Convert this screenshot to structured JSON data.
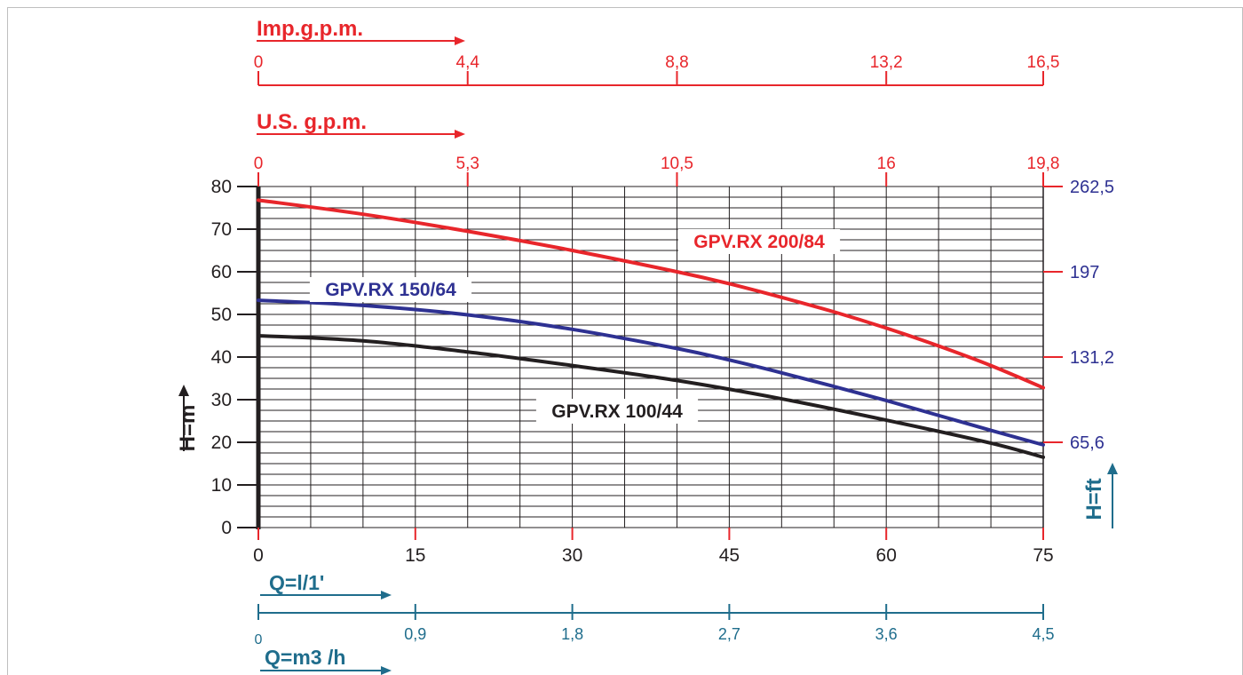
{
  "chart_data": {
    "type": "line",
    "xlim": [
      0,
      75
    ],
    "ylim": [
      0,
      80
    ],
    "x_ticks": [
      "0",
      "15",
      "30",
      "45",
      "60",
      "75"
    ],
    "y_ticks": [
      "0",
      "10",
      "20",
      "30",
      "40",
      "50",
      "60",
      "70",
      "80"
    ],
    "y_label": "H=m",
    "right_axis": {
      "label": "H=ft",
      "ticks": [
        {
          "value": 20,
          "label": "65,6"
        },
        {
          "value": 40,
          "label": "131,2"
        },
        {
          "value": 60,
          "label": "197"
        },
        {
          "value": 80,
          "label": "262,5"
        }
      ]
    },
    "top_axes": [
      {
        "label": "Imp.g.p.m.",
        "ticks": [
          {
            "value": 0,
            "label": "0"
          },
          {
            "value": 20,
            "label": "4,4"
          },
          {
            "value": 40,
            "label": "8,8"
          },
          {
            "value": 60,
            "label": "13,2"
          },
          {
            "value": 75,
            "label": "16,5"
          }
        ]
      },
      {
        "label": "U.S. g.p.m.",
        "ticks": [
          {
            "value": 0,
            "label": "0"
          },
          {
            "value": 20,
            "label": "5,3"
          },
          {
            "value": 40,
            "label": "10,5"
          },
          {
            "value": 60,
            "label": "16"
          },
          {
            "value": 75,
            "label": "19,8"
          }
        ]
      }
    ],
    "bottom_axes": [
      {
        "label": "Q=l/1'",
        "ticks": []
      },
      {
        "label": "Q=m3 /h",
        "ticks": [
          {
            "value": 0,
            "label": "0"
          },
          {
            "value": 15,
            "label": "0,9"
          },
          {
            "value": 30,
            "label": "1,8"
          },
          {
            "value": 45,
            "label": "2,7"
          },
          {
            "value": 60,
            "label": "3,6"
          },
          {
            "value": 75,
            "label": "4,5"
          }
        ]
      }
    ],
    "grid": true,
    "series": [
      {
        "name": "GPV.RX 200/84",
        "color": "#e8262b",
        "x": [
          0,
          10,
          20,
          30,
          40,
          45,
          50,
          55,
          60,
          65,
          70,
          75
        ],
        "y": [
          76.8,
          73.5,
          69.5,
          65,
          60,
          57.2,
          54,
          50.6,
          46.8,
          42.6,
          38,
          32.8
        ]
      },
      {
        "name": "GPV.RX 150/64",
        "color": "#2e3192",
        "x": [
          0,
          10,
          20,
          30,
          40,
          45,
          50,
          55,
          60,
          65,
          70,
          75
        ],
        "y": [
          53.3,
          52.1,
          49.9,
          46.5,
          42,
          39.3,
          36.3,
          33.1,
          29.8,
          26.3,
          22.8,
          19.4
        ]
      },
      {
        "name": "GPV.RX 100/44",
        "color": "#231f20",
        "x": [
          0,
          10,
          20,
          30,
          40,
          50,
          60,
          70,
          75
        ],
        "y": [
          45,
          43.8,
          41.2,
          38,
          34.5,
          30.2,
          25.2,
          19.8,
          16.5
        ]
      }
    ]
  }
}
